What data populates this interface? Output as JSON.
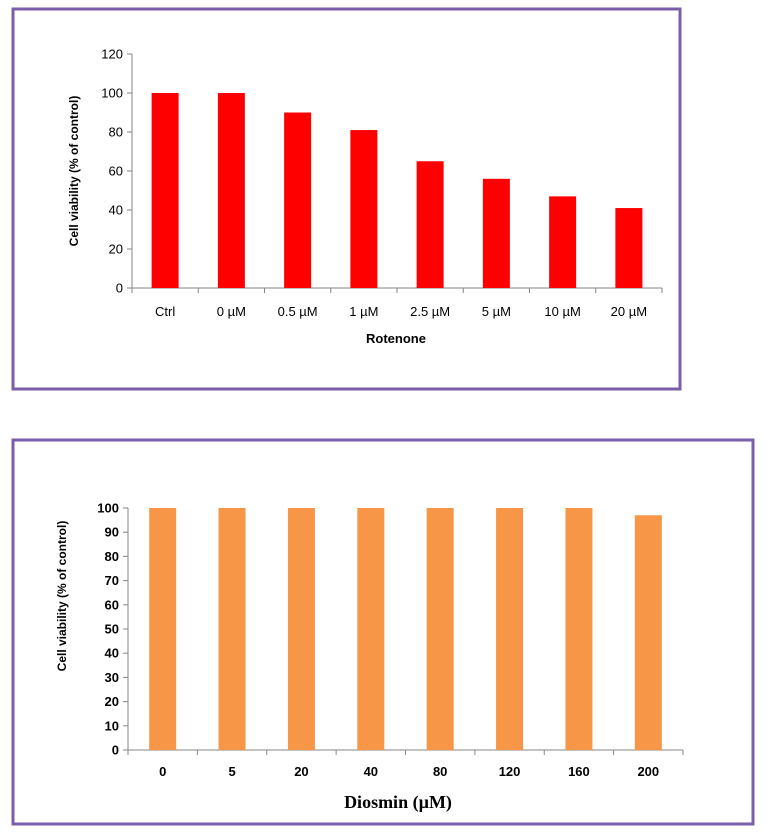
{
  "chart_data": [
    {
      "type": "bar",
      "categories": [
        "Ctrl",
        "0 µM",
        "0.5 µM",
        "1  µM",
        "2.5 µM",
        "5 µM",
        "10 µM",
        "20 µM"
      ],
      "values": [
        100,
        100,
        90,
        81,
        65,
        56,
        47,
        41
      ],
      "xlabel": "Rotenone",
      "ylabel": "Cell viability (% of control)",
      "ylim": [
        0,
        120
      ],
      "yticks": [
        0,
        20,
        40,
        60,
        80,
        100,
        120
      ],
      "bar_color": "#ff0000",
      "frame_color": "#7b5ea7",
      "grid": false
    },
    {
      "type": "bar",
      "categories": [
        "0",
        "5",
        "20",
        "40",
        "80",
        "120",
        "160",
        "200"
      ],
      "values": [
        100,
        100,
        100,
        100,
        100,
        100,
        100,
        97
      ],
      "xlabel": "Diosmin (µM)",
      "ylabel": "Cell viability (% of control)",
      "ylim": [
        0,
        100
      ],
      "yticks": [
        0,
        10,
        20,
        30,
        40,
        50,
        60,
        70,
        80,
        90,
        100
      ],
      "bar_color": "#f79646",
      "frame_color": "#7b5ea7",
      "grid": false
    }
  ]
}
